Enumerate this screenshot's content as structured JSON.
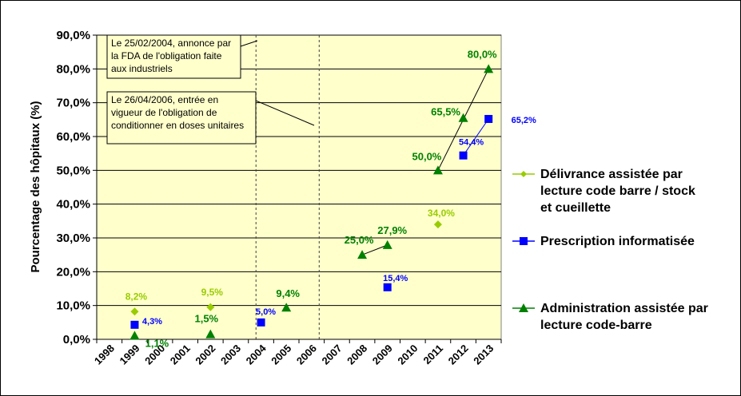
{
  "chart_data": {
    "type": "scatter",
    "ylabel": "Pourcentage des hôpitaux (%)",
    "xlabel": "",
    "ylim": [
      0,
      90
    ],
    "y_ticks": [
      "0,0%",
      "10,0%",
      "20,0%",
      "30,0%",
      "40,0%",
      "50,0%",
      "60,0%",
      "70,0%",
      "80,0%",
      "90,0%"
    ],
    "x_ticks": [
      "1998",
      "1999",
      "2000",
      "2001",
      "2002",
      "2003",
      "2004",
      "2005",
      "2006",
      "2007",
      "2008",
      "2009",
      "2010",
      "2011",
      "2012",
      "2013"
    ],
    "grid": "horizontal",
    "legend_position": "right",
    "background": "#ffffcc",
    "series": [
      {
        "name": "Délivrance assistée par lecture code barre / stock et cueillette",
        "color": "#99cc00",
        "marker": "diamond",
        "points": [
          {
            "x": 1999.5,
            "y": 8.2,
            "label": "8,2%"
          },
          {
            "x": 2002.5,
            "y": 9.5,
            "label": "9,5%"
          },
          {
            "x": 2011.5,
            "y": 34.0,
            "label": "34,0%"
          }
        ]
      },
      {
        "name": "Prescription informatisée",
        "color": "#0000ff",
        "marker": "square",
        "points": [
          {
            "x": 1999.5,
            "y": 4.3,
            "label": "4,3%"
          },
          {
            "x": 2004.5,
            "y": 5.0,
            "label": "5,0%"
          },
          {
            "x": 2009.5,
            "y": 15.4,
            "label": "15,4%"
          },
          {
            "x": 2012.5,
            "y": 54.4,
            "label": "54,4%"
          },
          {
            "x": 2013.5,
            "y": 65.2,
            "label": "65,2%"
          }
        ]
      },
      {
        "name": "Administration assistée par lecture code-barre",
        "color": "#008000",
        "marker": "triangle",
        "points": [
          {
            "x": 1999.5,
            "y": 1.1,
            "label": "1,1%"
          },
          {
            "x": 2002.5,
            "y": 1.5,
            "label": "1,5%"
          },
          {
            "x": 2005.5,
            "y": 9.4,
            "label": "9,4%"
          },
          {
            "x": 2008.5,
            "y": 25.0,
            "label": "25,0%"
          },
          {
            "x": 2009.5,
            "y": 27.9,
            "label": "27,9%"
          },
          {
            "x": 2011.5,
            "y": 50.0,
            "label": "50,0%"
          },
          {
            "x": 2012.5,
            "y": 65.5,
            "label": "65,5%"
          },
          {
            "x": 2013.5,
            "y": 80.0,
            "label": "80,0%"
          }
        ]
      }
    ],
    "reference_lines": [
      {
        "x": 2004.3,
        "style": "dashed"
      },
      {
        "x": 2006.8,
        "style": "dashed"
      }
    ],
    "annotations": [
      {
        "text_lines": [
          "Le 25/02/2004, annonce par",
          "la FDA de  l'obligation faite",
          "aux industriels"
        ]
      },
      {
        "text_lines": [
          "Le 26/04/2006, entrée en",
          "vigueur de l'obligation de",
          "conditionner en doses unitaires"
        ]
      }
    ]
  }
}
